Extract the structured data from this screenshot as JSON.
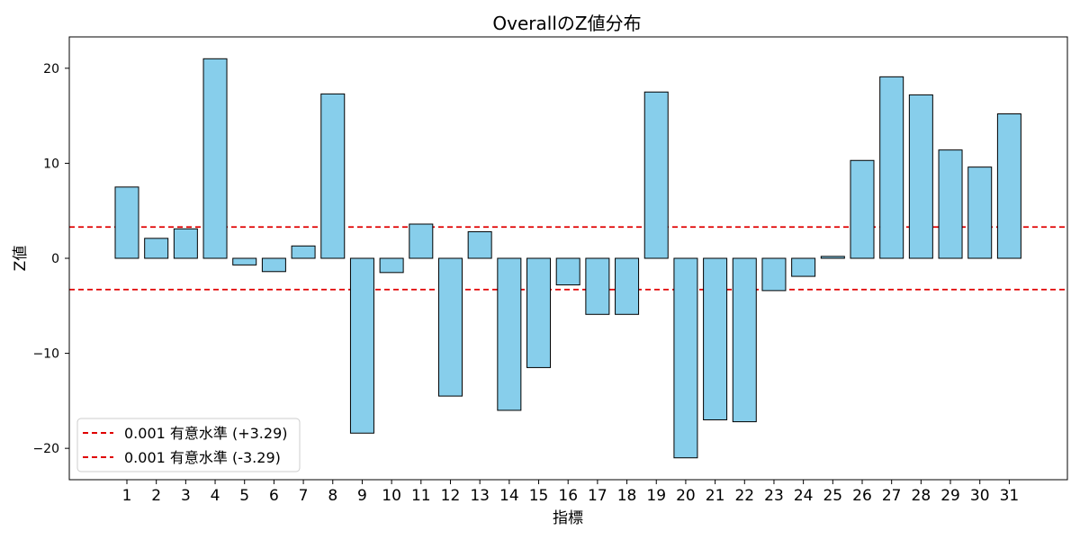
{
  "chart_data": {
    "type": "bar",
    "title": "OverallのZ値分布",
    "xlabel": "指標",
    "ylabel": "Z値",
    "categories": [
      "1",
      "2",
      "3",
      "4",
      "5",
      "6",
      "7",
      "8",
      "9",
      "10",
      "11",
      "12",
      "13",
      "14",
      "15",
      "16",
      "17",
      "18",
      "19",
      "20",
      "21",
      "22",
      "23",
      "24",
      "25",
      "26",
      "27",
      "28",
      "29",
      "30",
      "31"
    ],
    "values": [
      7.5,
      2.1,
      3.1,
      21.0,
      -0.7,
      -1.4,
      1.3,
      17.3,
      -18.4,
      -1.5,
      3.6,
      -14.5,
      2.8,
      -16.0,
      -11.5,
      -2.8,
      -5.9,
      -5.9,
      17.5,
      -21.0,
      -17.0,
      -17.2,
      -3.4,
      -1.9,
      0.2,
      10.3,
      19.1,
      17.2,
      11.4,
      9.6,
      15.2
    ],
    "ylim": [
      -23.3,
      23.3
    ],
    "yticks": [
      20,
      10,
      0,
      -10,
      -20
    ],
    "ytick_labels": [
      "20",
      "10",
      "0",
      "−10",
      "−20"
    ],
    "bar_color": "#87ceeb",
    "bar_edge_color": "#000000",
    "reference_lines": [
      {
        "value": 3.29,
        "label": "0.001 有意水準 (+3.29)",
        "color": "#e00000",
        "style": "dashed"
      },
      {
        "value": -3.29,
        "label": "0.001 有意水準 (-3.29)",
        "color": "#e00000",
        "style": "dashed"
      }
    ],
    "legend_position": "lower-left",
    "grid": false
  }
}
